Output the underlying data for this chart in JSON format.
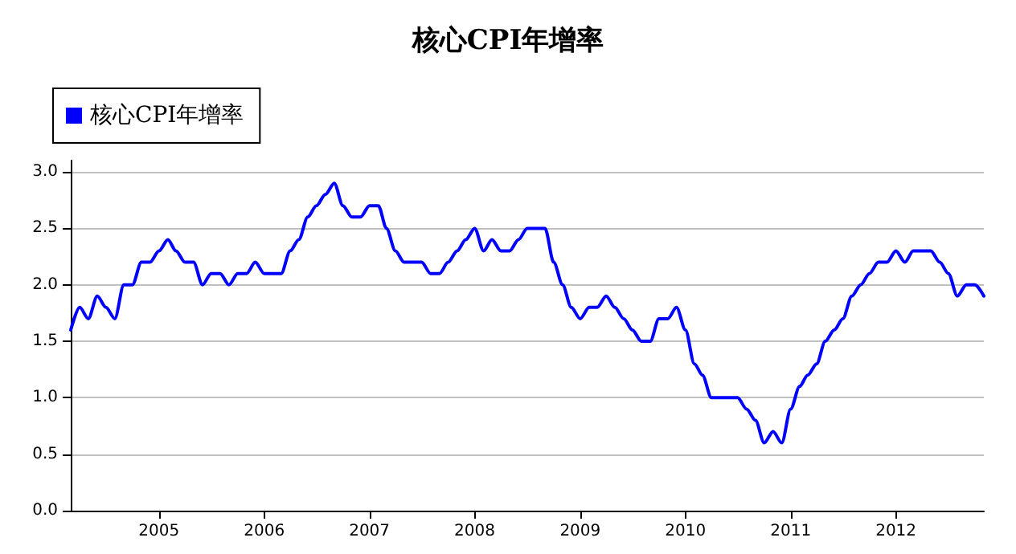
{
  "chart_data": {
    "type": "line",
    "title": "核心CPI年增率",
    "x": [
      "2004-03",
      "2004-04",
      "2004-05",
      "2004-06",
      "2004-07",
      "2004-08",
      "2004-09",
      "2004-10",
      "2004-11",
      "2004-12",
      "2005-01",
      "2005-02",
      "2005-03",
      "2005-04",
      "2005-05",
      "2005-06",
      "2005-07",
      "2005-08",
      "2005-09",
      "2005-10",
      "2005-11",
      "2005-12",
      "2006-01",
      "2006-02",
      "2006-03",
      "2006-04",
      "2006-05",
      "2006-06",
      "2006-07",
      "2006-08",
      "2006-09",
      "2006-10",
      "2006-11",
      "2006-12",
      "2007-01",
      "2007-02",
      "2007-03",
      "2007-04",
      "2007-05",
      "2007-06",
      "2007-07",
      "2007-08",
      "2007-09",
      "2007-10",
      "2007-11",
      "2007-12",
      "2008-01",
      "2008-02",
      "2008-03",
      "2008-04",
      "2008-05",
      "2008-06",
      "2008-07",
      "2008-08",
      "2008-09",
      "2008-10",
      "2008-11",
      "2008-12",
      "2009-01",
      "2009-02",
      "2009-03",
      "2009-04",
      "2009-05",
      "2009-06",
      "2009-07",
      "2009-08",
      "2009-09",
      "2009-10",
      "2009-11",
      "2009-12",
      "2010-01",
      "2010-02",
      "2010-03",
      "2010-04",
      "2010-05",
      "2010-06",
      "2010-07",
      "2010-08",
      "2010-09",
      "2010-10",
      "2010-11",
      "2010-12",
      "2011-01",
      "2011-02",
      "2011-03",
      "2011-04",
      "2011-05",
      "2011-06",
      "2011-07",
      "2011-08",
      "2011-09",
      "2011-10",
      "2011-11",
      "2011-12",
      "2012-01",
      "2012-02",
      "2012-03",
      "2012-04",
      "2012-05",
      "2012-06",
      "2012-07",
      "2012-08",
      "2012-09",
      "2012-10",
      "2012-11"
    ],
    "series": [
      {
        "name": "核心CPI年增率",
        "color": "#0000ff",
        "values": [
          1.6,
          1.8,
          1.7,
          1.9,
          1.8,
          1.7,
          2.0,
          2.0,
          2.2,
          2.2,
          2.3,
          2.4,
          2.3,
          2.2,
          2.2,
          2.0,
          2.1,
          2.1,
          2.0,
          2.1,
          2.1,
          2.2,
          2.1,
          2.1,
          2.1,
          2.3,
          2.4,
          2.6,
          2.7,
          2.8,
          2.9,
          2.7,
          2.6,
          2.6,
          2.7,
          2.7,
          2.5,
          2.3,
          2.2,
          2.2,
          2.2,
          2.1,
          2.1,
          2.2,
          2.3,
          2.4,
          2.5,
          2.3,
          2.4,
          2.3,
          2.3,
          2.4,
          2.5,
          2.5,
          2.5,
          2.2,
          2.0,
          1.8,
          1.7,
          1.8,
          1.8,
          1.9,
          1.8,
          1.7,
          1.6,
          1.5,
          1.5,
          1.7,
          1.7,
          1.8,
          1.6,
          1.3,
          1.2,
          1.0,
          1.0,
          1.0,
          1.0,
          0.9,
          0.8,
          0.6,
          0.7,
          0.6,
          0.9,
          1.1,
          1.2,
          1.3,
          1.5,
          1.6,
          1.7,
          1.9,
          2.0,
          2.1,
          2.2,
          2.2,
          2.3,
          2.2,
          2.3,
          2.3,
          2.3,
          2.2,
          2.1,
          1.9,
          2.0,
          2.0,
          1.9
        ]
      }
    ],
    "xlim": [
      "2004-03",
      "2012-11"
    ],
    "xticks": [
      "2005",
      "2006",
      "2007",
      "2008",
      "2009",
      "2010",
      "2011",
      "2012"
    ],
    "ylim": [
      0,
      3.1
    ],
    "yticks": [
      {
        "value": 0,
        "label": "0.0"
      },
      {
        "value": 0.5,
        "label": "0.5"
      },
      {
        "value": 1,
        "label": "1.0"
      },
      {
        "value": 1.5,
        "label": "1.5"
      },
      {
        "value": 2,
        "label": "2.0"
      },
      {
        "value": 2.5,
        "label": "2.5"
      },
      {
        "value": 3,
        "label": "3.0"
      }
    ],
    "grid": "y",
    "legend": "top left",
    "marker": "none",
    "line_style": "solid"
  }
}
